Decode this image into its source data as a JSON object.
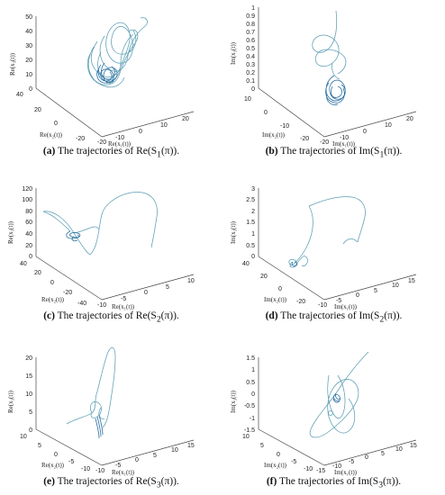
{
  "chart_data": [
    {
      "id": "a",
      "type": "line",
      "caption": {
        "label": "(a)",
        "text": " The trajectories of Re(S",
        "sub": "1",
        "tail": "(π))."
      },
      "xlabel": "Re(x₁(t))",
      "ylabel": "Re(x₂(t))",
      "zlabel": "Re(x₃(t))",
      "xticks": [
        "-20",
        "-10",
        "0",
        "10",
        "20"
      ],
      "yticks": [
        "40",
        "20",
        "0",
        "-20"
      ],
      "zticks": [
        "0",
        "10",
        "20",
        "30",
        "40",
        "50"
      ],
      "xlim": [
        -20,
        20
      ],
      "ylim": [
        -20,
        40
      ],
      "zlim": [
        0,
        50
      ]
    },
    {
      "id": "b",
      "type": "line",
      "caption": {
        "label": "(b)",
        "text": " The trajectories of Im(S",
        "sub": "1",
        "tail": "(π))."
      },
      "xlabel": "Im(x₁(t))",
      "ylabel": "Im(x₂(t))",
      "zlabel": "Im(x₃(t))",
      "xticks": [
        "-20",
        "-10",
        "0",
        "10",
        "20"
      ],
      "yticks": [
        "10",
        "0",
        "-10",
        "-20"
      ],
      "zticks": [
        "0",
        "0.1",
        "0.2",
        "0.3",
        "0.4",
        "0.5",
        "0.6",
        "0.7",
        "0.8",
        "0.9",
        "1"
      ],
      "xlim": [
        -20,
        20
      ],
      "ylim": [
        -20,
        10
      ],
      "zlim": [
        0,
        1
      ]
    },
    {
      "id": "c",
      "type": "line",
      "caption": {
        "label": "(c)",
        "text": " The trajectories of Re(S",
        "sub": "2",
        "tail": "(π))."
      },
      "xlabel": "Re(x₁(t))",
      "ylabel": "Re(x₂(t))",
      "zlabel": "Re(x₃(t))",
      "xticks": [
        "-10",
        "-5",
        "0",
        "5",
        "10"
      ],
      "yticks": [
        "40",
        "20",
        "0",
        "-20",
        "-40"
      ],
      "zticks": [
        "0",
        "20",
        "40",
        "60",
        "80",
        "100",
        "120"
      ],
      "xlim": [
        -10,
        10
      ],
      "ylim": [
        -40,
        40
      ],
      "zlim": [
        0,
        120
      ]
    },
    {
      "id": "d",
      "type": "line",
      "caption": {
        "label": "(d)",
        "text": " The trajectories of Im(S",
        "sub": "2",
        "tail": "(π))."
      },
      "xlabel": "Im(x₁(t))",
      "ylabel": "Im(x₂(t))",
      "zlabel": "Im(x₃(t))",
      "xticks": [
        "-10",
        "-5",
        "0",
        "5",
        "10",
        "15"
      ],
      "yticks": [
        "40",
        "20",
        "0",
        "-20"
      ],
      "zticks": [
        "0",
        "0.5",
        "1",
        "1.5",
        "2",
        "2.5",
        "3"
      ],
      "xlim": [
        -10,
        15
      ],
      "ylim": [
        -20,
        40
      ],
      "zlim": [
        0,
        3
      ]
    },
    {
      "id": "e",
      "type": "line",
      "caption": {
        "label": "(e)",
        "text": " The trajectories of Re(S",
        "sub": "3",
        "tail": "(π))."
      },
      "xlabel": "Re(x₁(t))",
      "ylabel": "Re(x₂(t))",
      "zlabel": "Re(x₃(t))",
      "xticks": [
        "-10",
        "-5",
        "0",
        "5",
        "10",
        "15"
      ],
      "yticks": [
        "10",
        "5",
        "0",
        "-5",
        "-10"
      ],
      "zticks": [
        "0",
        "5",
        "10",
        "15",
        "20"
      ],
      "xlim": [
        -10,
        15
      ],
      "ylim": [
        -10,
        10
      ],
      "zlim": [
        0,
        20
      ]
    },
    {
      "id": "f",
      "type": "line",
      "caption": {
        "label": "(f)",
        "text": " The trajectories of Im(S",
        "sub": "3",
        "tail": "(π))."
      },
      "xlabel": "Im(x₁(t))",
      "ylabel": "Im(x₂(t))",
      "zlabel": "Im(x₃(t))",
      "xticks": [
        "-15",
        "-10",
        "-5",
        "0",
        "5",
        "10",
        "15"
      ],
      "yticks": [
        "10",
        "5",
        "0",
        "-5",
        "-10"
      ],
      "zticks": [
        "-1.5",
        "-1",
        "-0.5",
        "0",
        "0.5",
        "1",
        "1.5"
      ],
      "xlim": [
        -15,
        15
      ],
      "ylim": [
        -10,
        10
      ],
      "zlim": [
        -1.5,
        1.5
      ]
    }
  ],
  "colors": {
    "trajectory": "#5b9db3",
    "trajectory_dense": "#2a6fa0",
    "axis": "#444444"
  }
}
